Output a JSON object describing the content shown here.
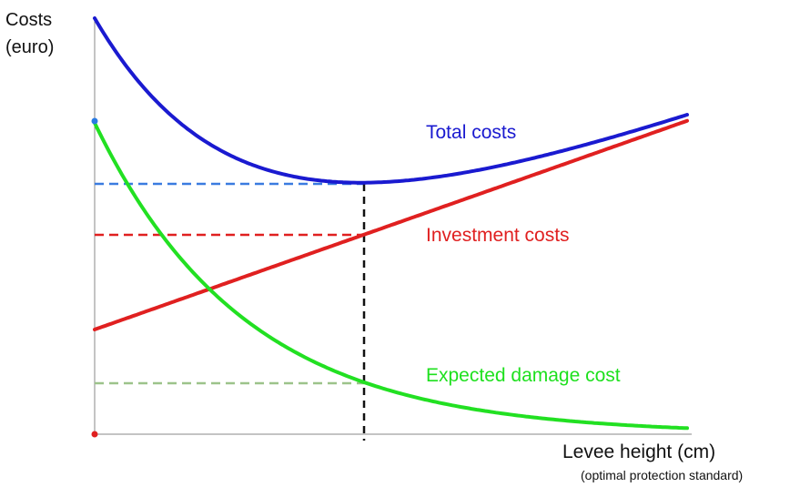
{
  "y_axis_label": [
    "Costs",
    "(euro)"
  ],
  "x_axis_label": "Levee height (cm)",
  "x_axis_sublabel": "(optimal protection standard)",
  "curves": {
    "total": {
      "label": "Total costs"
    },
    "investment": {
      "label": "Investment costs"
    },
    "damage": {
      "label": "Expected damage cost"
    }
  }
}
